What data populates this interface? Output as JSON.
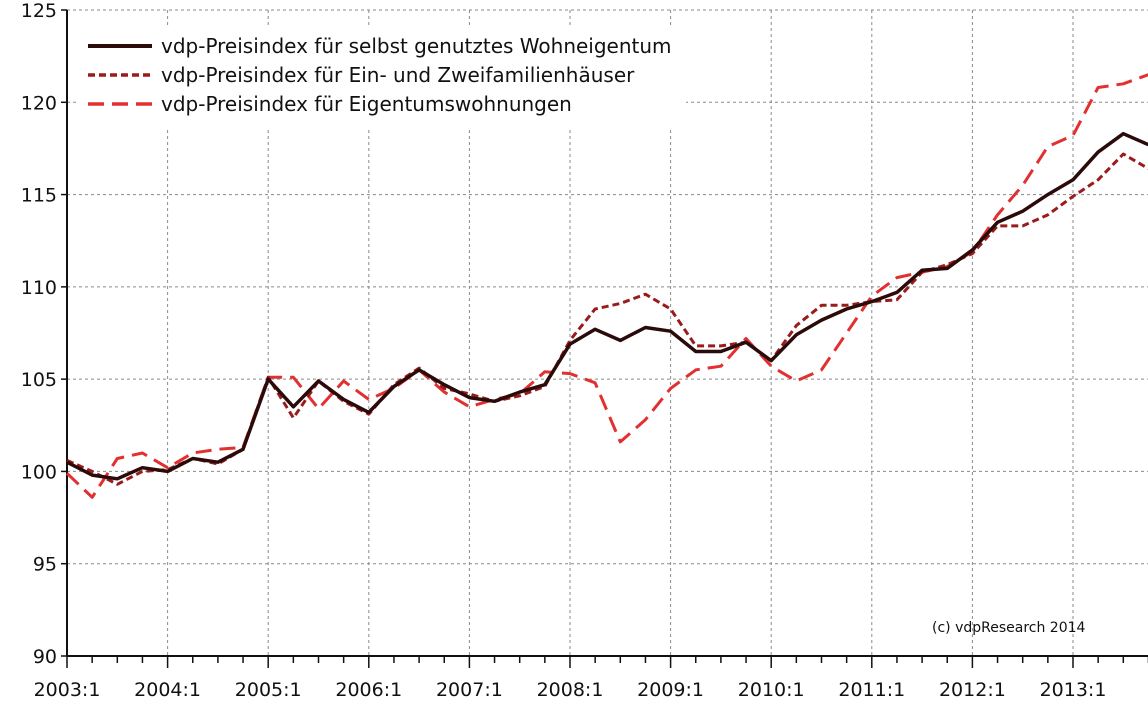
{
  "chart_data": {
    "type": "line",
    "title": "",
    "xlabel": "",
    "ylabel": "",
    "ylim": [
      90,
      125
    ],
    "y_ticks": [
      90,
      95,
      100,
      105,
      110,
      115,
      120,
      125
    ],
    "x_tick_labels": [
      "2003:1",
      "2004:1",
      "2005:1",
      "2006:1",
      "2007:1",
      "2008:1",
      "2009:1",
      "2010:1",
      "2011:1",
      "2012:1",
      "2013:1"
    ],
    "grid": true,
    "legend_position": "top-left",
    "credit": "(c) vdpResearch 2014",
    "x": [
      "2003:1",
      "2003:2",
      "2003:3",
      "2003:4",
      "2004:1",
      "2004:2",
      "2004:3",
      "2004:4",
      "2005:1",
      "2005:2",
      "2005:3",
      "2005:4",
      "2006:1",
      "2006:2",
      "2006:3",
      "2006:4",
      "2007:1",
      "2007:2",
      "2007:3",
      "2007:4",
      "2008:1",
      "2008:2",
      "2008:3",
      "2008:4",
      "2009:1",
      "2009:2",
      "2009:3",
      "2009:4",
      "2010:1",
      "2010:2",
      "2010:3",
      "2010:4",
      "2011:1",
      "2011:2",
      "2011:3",
      "2011:4",
      "2012:1",
      "2012:2",
      "2012:3",
      "2012:4",
      "2013:1",
      "2013:2",
      "2013:3",
      "2013:4"
    ],
    "series": [
      {
        "name": "vdp-Preisindex für selbst genutztes Wohneigentum",
        "color": "#2b0a0a",
        "style": "solid",
        "values": [
          100.5,
          99.8,
          99.6,
          100.2,
          100.0,
          100.7,
          100.5,
          101.2,
          105.0,
          103.5,
          104.9,
          103.9,
          103.2,
          104.6,
          105.5,
          104.7,
          104.0,
          103.8,
          104.3,
          104.7,
          106.9,
          107.7,
          107.1,
          107.8,
          107.6,
          106.5,
          106.5,
          107.0,
          106.0,
          107.4,
          108.2,
          108.8,
          109.2,
          109.7,
          110.9,
          111.0,
          112.0,
          113.5,
          114.1,
          115.0,
          115.8,
          117.3,
          118.3,
          117.7
        ]
      },
      {
        "name": "vdp-Preisindex für Ein- und Zweifamilienhäuser",
        "color": "#9a1b1b",
        "style": "short-dash",
        "values": [
          100.6,
          100.0,
          99.3,
          100.0,
          100.1,
          100.7,
          100.4,
          101.2,
          105.1,
          102.9,
          104.9,
          103.8,
          103.1,
          104.7,
          105.6,
          104.5,
          104.2,
          103.8,
          104.1,
          104.6,
          107.1,
          108.8,
          109.1,
          109.6,
          108.8,
          106.8,
          106.8,
          107.0,
          106.0,
          107.9,
          109.0,
          109.0,
          109.2,
          109.3,
          110.8,
          111.2,
          111.8,
          113.3,
          113.3,
          113.9,
          114.9,
          115.8,
          117.2,
          116.4
        ]
      },
      {
        "name": "vdp-Preisindex für Eigentumswohnungen",
        "color": "#e23030",
        "style": "long-dash",
        "values": [
          99.9,
          98.6,
          100.7,
          101.0,
          100.2,
          101.0,
          101.2,
          101.3,
          105.1,
          105.1,
          103.4,
          104.9,
          103.9,
          104.5,
          105.5,
          104.3,
          103.5,
          103.9,
          104.2,
          105.4,
          105.3,
          104.8,
          101.6,
          102.8,
          104.5,
          105.5,
          105.7,
          107.2,
          105.7,
          104.9,
          105.5,
          107.5,
          109.5,
          110.5,
          110.8,
          111.1,
          111.9,
          113.9,
          115.5,
          117.6,
          118.2,
          120.8,
          121.0,
          121.5
        ]
      }
    ]
  }
}
